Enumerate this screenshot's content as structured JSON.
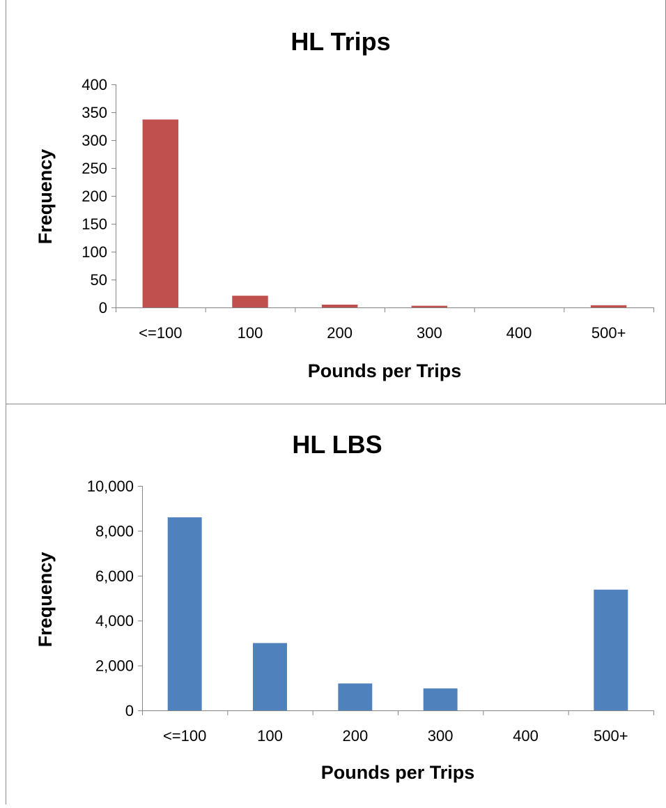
{
  "chart_data": [
    {
      "type": "bar",
      "title": "HL Trips",
      "xlabel": "Pounds per Trips",
      "ylabel": "Frequency",
      "categories": [
        "<=100",
        "100",
        "200",
        "300",
        "400",
        "500+"
      ],
      "values": [
        337,
        21,
        5,
        3,
        0,
        4
      ],
      "ylim": [
        0,
        400
      ],
      "yticks": [
        "0",
        "50",
        "100",
        "150",
        "200",
        "250",
        "300",
        "350",
        "400"
      ],
      "grid": false,
      "color": "#C0504D"
    },
    {
      "type": "bar",
      "title": "HL LBS",
      "xlabel": "Pounds per Trips",
      "ylabel": "Frequency",
      "categories": [
        "<=100",
        "100",
        "200",
        "300",
        "400",
        "500+"
      ],
      "values": [
        8600,
        3000,
        1200,
        980,
        0,
        5380
      ],
      "ylim": [
        0,
        10000
      ],
      "yticks": [
        "0",
        "2,000",
        "4,000",
        "6,000",
        "8,000",
        "10,000"
      ],
      "grid": false,
      "color": "#4F81BD"
    }
  ]
}
